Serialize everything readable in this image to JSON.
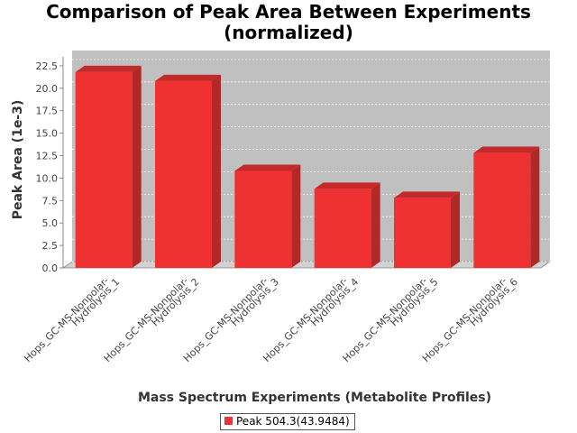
{
  "chart_data": {
    "type": "bar",
    "title_lines": [
      "Comparison of Peak Area Between Experiments",
      "(normalized)"
    ],
    "xlabel": "Mass Spectrum Experiments (Metabolite Profiles)",
    "ylabel": "Peak Area (1e-3)",
    "categories": [
      [
        "Hops_GC-MS-Nonpolar-",
        "Hydrolysis_1"
      ],
      [
        "Hops_GC-MS-Nonpolar-",
        "Hydrolysis_2"
      ],
      [
        "Hops_GC-MS-Nonpolar-",
        "Hydrolysis_3"
      ],
      [
        "Hops_GC-MS-Nonpolar-",
        "Hydrolysis_4"
      ],
      [
        "Hops_GC-MS-Nonpolar-",
        "Hydrolysis_5"
      ],
      [
        "Hops_GC-MS-Nonpolar-",
        "Hydrolysis_6"
      ]
    ],
    "series": [
      {
        "name": "Peak 504.3(43.9484)",
        "values": [
          21.8,
          20.8,
          10.8,
          8.8,
          7.8,
          12.8
        ]
      }
    ],
    "ylim": [
      0,
      23.5
    ],
    "yticks": [
      0.0,
      2.5,
      5.0,
      7.5,
      10.0,
      12.5,
      15.0,
      17.5,
      20.0,
      22.5
    ],
    "ytick_labels": [
      "0.0",
      "2.5",
      "5.0",
      "7.5",
      "10.0",
      "12.5",
      "15.0",
      "17.5",
      "20.0",
      "22.5"
    ],
    "grid": true,
    "legend_position": "bottom-center",
    "colors": {
      "bar_front": "#ef3131",
      "bar_top": "#c42a2a",
      "bar_side": "#b12828",
      "plot_back": "#c0c0c0",
      "plot_floor": "#d2d2d2",
      "gridline": "#ffffff",
      "axis": "#888888"
    }
  }
}
